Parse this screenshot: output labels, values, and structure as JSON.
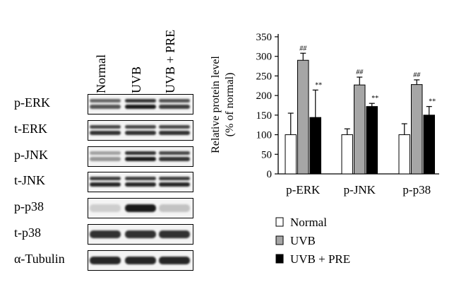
{
  "blot": {
    "lanes": [
      "Normal",
      "UVB",
      "UVB + PRE"
    ],
    "rows": [
      {
        "label": "p-ERK",
        "intensity": [
          0.7,
          0.95,
          0.8
        ],
        "band": "double"
      },
      {
        "label": "t-ERK",
        "intensity": [
          0.85,
          0.85,
          0.85
        ],
        "band": "double"
      },
      {
        "label": "p-JNK",
        "intensity": [
          0.4,
          0.95,
          0.85
        ],
        "band": "double"
      },
      {
        "label": "t-JNK",
        "intensity": [
          0.9,
          0.9,
          0.9
        ],
        "band": "double"
      },
      {
        "label": "p-p38",
        "intensity": [
          0.15,
          0.95,
          0.2
        ],
        "band": "single"
      },
      {
        "label": "t-p38",
        "intensity": [
          0.85,
          0.85,
          0.85
        ],
        "band": "single"
      },
      {
        "label": "α-Tubulin",
        "intensity": [
          0.9,
          0.9,
          0.9
        ],
        "band": "single"
      }
    ]
  },
  "chart_data": {
    "type": "bar",
    "categories": [
      "p-ERK",
      "p-JNK",
      "p-p38"
    ],
    "ylabel_line1": "Relative protein level",
    "ylabel_line2": "(% of normal)",
    "ylim": [
      0,
      350
    ],
    "yticks": [
      "0",
      "50",
      "100",
      "150",
      "200",
      "250",
      "300",
      "350"
    ],
    "series": [
      {
        "name": "Normal",
        "values": [
          100,
          100,
          100
        ],
        "errors": [
          55,
          15,
          28
        ],
        "color": "#ffffff",
        "marks": [
          "",
          "",
          ""
        ]
      },
      {
        "name": "UVB",
        "values": [
          290,
          227,
          228
        ],
        "errors": [
          18,
          20,
          12
        ],
        "color": "#a6a6a6",
        "marks": [
          "##",
          "##",
          "##"
        ]
      },
      {
        "name": "UVB + PRE",
        "values": [
          144,
          172,
          150
        ],
        "errors": [
          70,
          8,
          22
        ],
        "color": "#000000",
        "marks": [
          "**",
          "**",
          "**"
        ]
      }
    ],
    "legend_position": "bottom"
  }
}
